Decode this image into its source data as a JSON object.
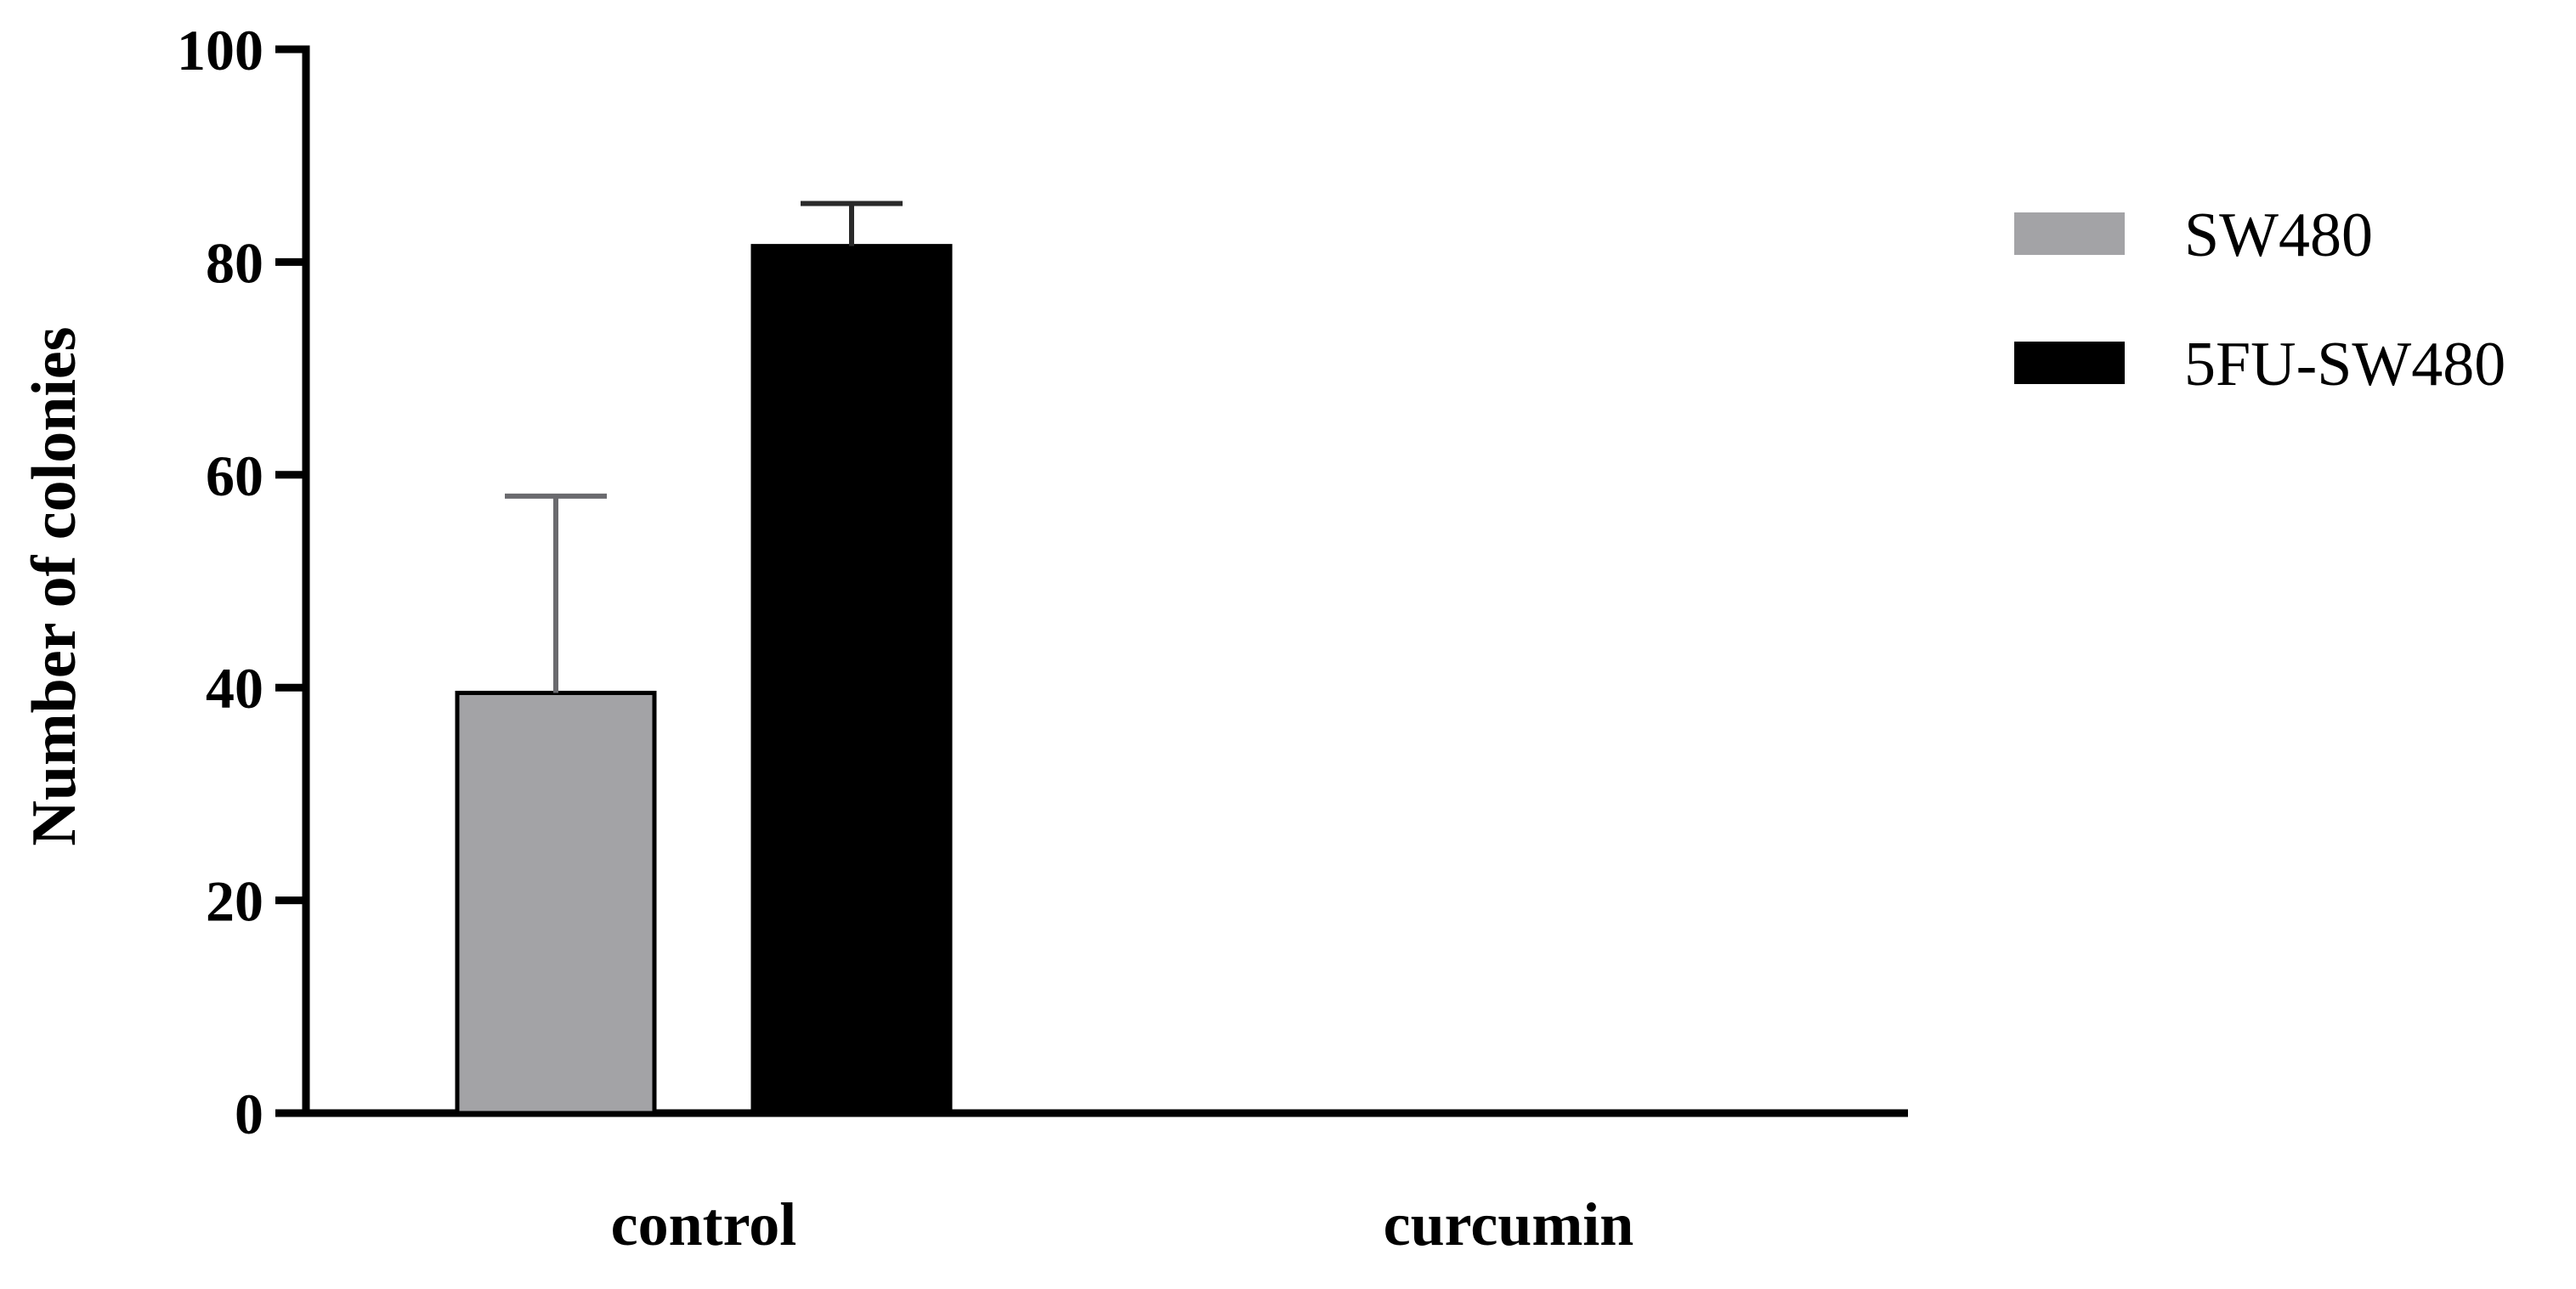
{
  "chart_data": {
    "type": "bar",
    "title": "",
    "xlabel": "",
    "ylabel": "Number of colonies",
    "categories": [
      "control",
      "curcumin"
    ],
    "ylim": [
      0,
      100
    ],
    "yticks": [
      0,
      20,
      40,
      60,
      80,
      100
    ],
    "grid": false,
    "legend_position": "top-right",
    "series": [
      {
        "name": "SW480",
        "color": "#a3a3a6",
        "values": [
          39.5,
          0
        ],
        "errors": [
          18.5,
          0
        ]
      },
      {
        "name": "5FU-SW480",
        "color": "#000000",
        "values": [
          81.5,
          0
        ],
        "errors": [
          4,
          0
        ]
      }
    ]
  }
}
